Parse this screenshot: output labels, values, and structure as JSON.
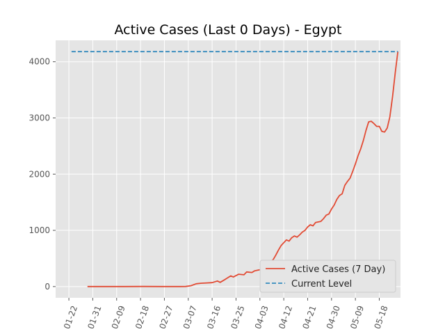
{
  "chart_data": {
    "type": "line",
    "title": "Active Cases (Last 0 Days) - Egypt",
    "xlabel": "",
    "ylabel": "",
    "x_ticks": [
      "01-22",
      "01-31",
      "02-09",
      "02-18",
      "02-27",
      "03-07",
      "03-16",
      "03-25",
      "04-03",
      "04-12",
      "04-21",
      "04-30",
      "05-09",
      "05-18"
    ],
    "x_range": [
      "2020-01-17",
      "2020-05-26"
    ],
    "y_ticks": [
      0,
      1000,
      2000,
      3000,
      4000
    ],
    "ylim": [
      -200,
      4380
    ],
    "grid": true,
    "legend_position": "lower-right",
    "series": [
      {
        "name": "Active Cases (7 Day)",
        "color": "#e24a33",
        "style": "solid",
        "points": [
          [
            "2020-01-29",
            0
          ],
          [
            "2020-02-05",
            0
          ],
          [
            "2020-02-12",
            0
          ],
          [
            "2020-02-19",
            2
          ],
          [
            "2020-02-26",
            1
          ],
          [
            "2020-03-04",
            1
          ],
          [
            "2020-03-06",
            2
          ],
          [
            "2020-03-08",
            15
          ],
          [
            "2020-03-10",
            50
          ],
          [
            "2020-03-12",
            60
          ],
          [
            "2020-03-14",
            65
          ],
          [
            "2020-03-16",
            70
          ],
          [
            "2020-03-18",
            100
          ],
          [
            "2020-03-19",
            75
          ],
          [
            "2020-03-21",
            130
          ],
          [
            "2020-03-23",
            190
          ],
          [
            "2020-03-24",
            170
          ],
          [
            "2020-03-26",
            220
          ],
          [
            "2020-03-28",
            210
          ],
          [
            "2020-03-29",
            260
          ],
          [
            "2020-03-31",
            250
          ],
          [
            "2020-04-01",
            280
          ],
          [
            "2020-04-03",
            300
          ],
          [
            "2020-04-05",
            330
          ],
          [
            "2020-04-06",
            370
          ],
          [
            "2020-04-07",
            440
          ],
          [
            "2020-04-08",
            480
          ],
          [
            "2020-04-09",
            560
          ],
          [
            "2020-04-10",
            650
          ],
          [
            "2020-04-11",
            730
          ],
          [
            "2020-04-12",
            780
          ],
          [
            "2020-04-13",
            830
          ],
          [
            "2020-04-14",
            810
          ],
          [
            "2020-04-15",
            870
          ],
          [
            "2020-04-16",
            900
          ],
          [
            "2020-04-17",
            880
          ],
          [
            "2020-04-18",
            920
          ],
          [
            "2020-04-19",
            970
          ],
          [
            "2020-04-20",
            1000
          ],
          [
            "2020-04-21",
            1060
          ],
          [
            "2020-04-22",
            1100
          ],
          [
            "2020-04-23",
            1080
          ],
          [
            "2020-04-24",
            1140
          ],
          [
            "2020-04-26",
            1160
          ],
          [
            "2020-04-27",
            1210
          ],
          [
            "2020-04-28",
            1270
          ],
          [
            "2020-04-29",
            1290
          ],
          [
            "2020-04-30",
            1380
          ],
          [
            "2020-05-01",
            1450
          ],
          [
            "2020-05-02",
            1550
          ],
          [
            "2020-05-03",
            1620
          ],
          [
            "2020-05-04",
            1650
          ],
          [
            "2020-05-05",
            1800
          ],
          [
            "2020-05-06",
            1870
          ],
          [
            "2020-05-07",
            1930
          ],
          [
            "2020-05-08",
            2050
          ],
          [
            "2020-05-09",
            2180
          ],
          [
            "2020-05-10",
            2330
          ],
          [
            "2020-05-11",
            2450
          ],
          [
            "2020-05-12",
            2600
          ],
          [
            "2020-05-13",
            2780
          ],
          [
            "2020-05-14",
            2930
          ],
          [
            "2020-05-15",
            2940
          ],
          [
            "2020-05-16",
            2900
          ],
          [
            "2020-05-17",
            2850
          ],
          [
            "2020-05-18",
            2850
          ],
          [
            "2020-05-19",
            2760
          ],
          [
            "2020-05-20",
            2750
          ],
          [
            "2020-05-21",
            2820
          ],
          [
            "2020-05-22",
            3020
          ],
          [
            "2020-05-23",
            3380
          ],
          [
            "2020-05-24",
            3800
          ],
          [
            "2020-05-25",
            4180
          ]
        ]
      },
      {
        "name": "Current Level",
        "color": "#348abd",
        "style": "dashed",
        "points": [
          [
            "2020-01-23",
            4180
          ],
          [
            "2020-05-25",
            4180
          ]
        ]
      }
    ]
  }
}
